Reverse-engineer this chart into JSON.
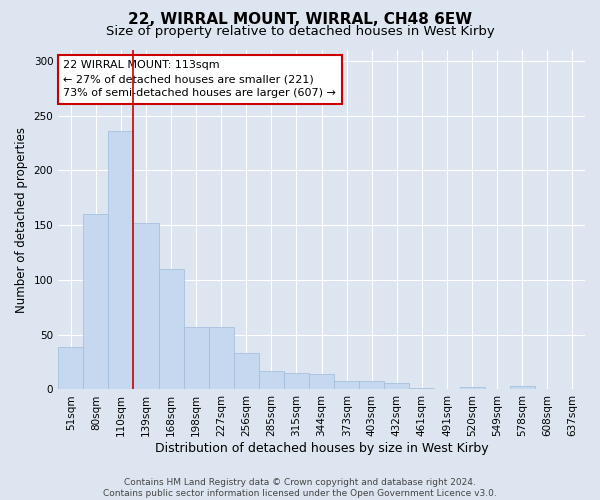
{
  "title": "22, WIRRAL MOUNT, WIRRAL, CH48 6EW",
  "subtitle": "Size of property relative to detached houses in West Kirby",
  "xlabel": "Distribution of detached houses by size in West Kirby",
  "ylabel": "Number of detached properties",
  "categories": [
    "51sqm",
    "80sqm",
    "110sqm",
    "139sqm",
    "168sqm",
    "198sqm",
    "227sqm",
    "256sqm",
    "285sqm",
    "315sqm",
    "344sqm",
    "373sqm",
    "403sqm",
    "432sqm",
    "461sqm",
    "491sqm",
    "520sqm",
    "549sqm",
    "578sqm",
    "608sqm",
    "637sqm"
  ],
  "values": [
    39,
    160,
    236,
    152,
    110,
    57,
    57,
    33,
    17,
    15,
    14,
    8,
    8,
    6,
    1,
    0,
    2,
    0,
    3,
    0,
    0
  ],
  "bar_color": "#c5d8f0",
  "bar_edge_color": "#a0bbda",
  "vline_x": 2.5,
  "vline_color": "#cc0000",
  "annotation_text": "22 WIRRAL MOUNT: 113sqm\n← 27% of detached houses are smaller (221)\n73% of semi-detached houses are larger (607) →",
  "annotation_box_color": "#ffffff",
  "annotation_box_edge": "#cc0000",
  "background_color": "#dde6f0",
  "plot_bg_color": "#dde6f0",
  "ylim": [
    0,
    310
  ],
  "yticks": [
    0,
    50,
    100,
    150,
    200,
    250,
    300
  ],
  "footer1": "Contains HM Land Registry data © Crown copyright and database right 2024.",
  "footer2": "Contains public sector information licensed under the Open Government Licence v3.0.",
  "title_fontsize": 11,
  "subtitle_fontsize": 9.5,
  "xlabel_fontsize": 9,
  "ylabel_fontsize": 8.5,
  "tick_fontsize": 7.5,
  "annot_fontsize": 8,
  "footer_fontsize": 6.5
}
